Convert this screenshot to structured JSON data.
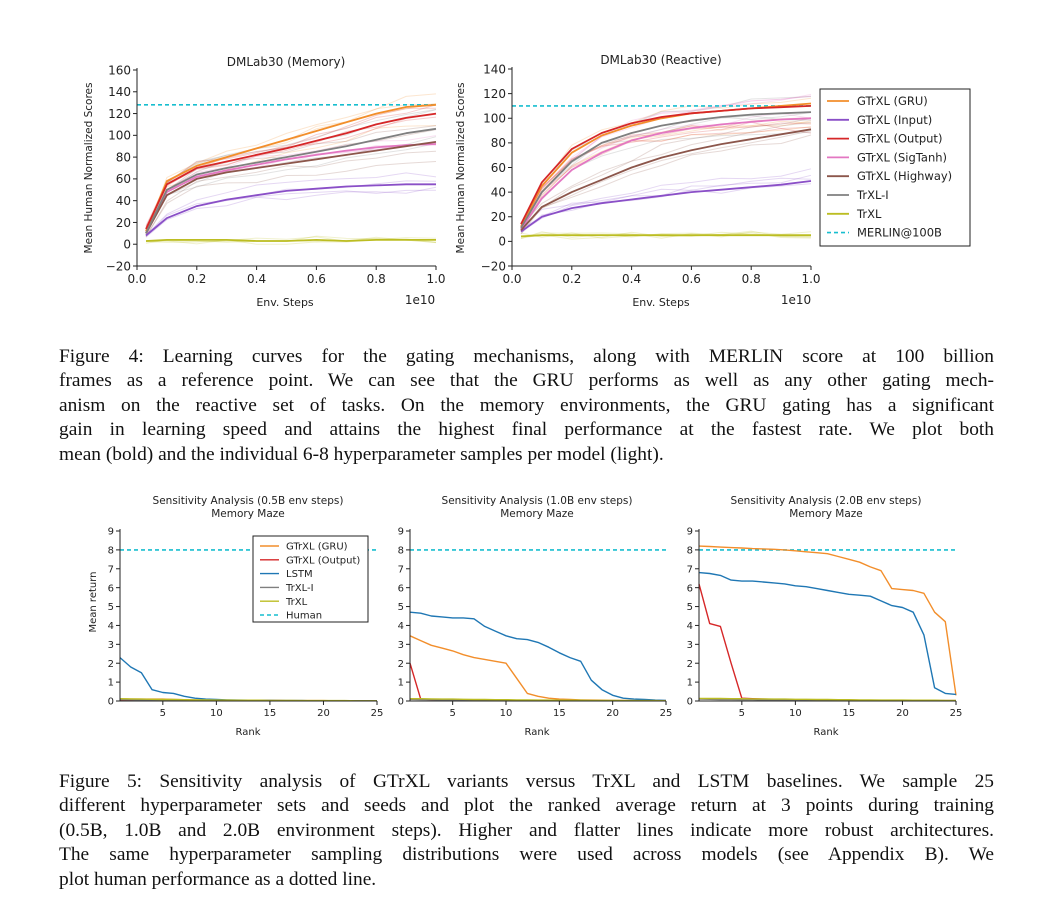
{
  "figure4": {
    "panels": [
      {
        "title": "DMLab30 (Memory)",
        "xlabel": "Env. Steps",
        "ylabel": "Mean Human Normalized Scores",
        "x_offset_label": "1e10",
        "xticks": [
          "0.0",
          "0.2",
          "0.4",
          "0.6",
          "0.8",
          "1.0"
        ],
        "yticks": [
          "−20",
          "0",
          "20",
          "40",
          "60",
          "80",
          "100",
          "120",
          "140",
          "160"
        ]
      },
      {
        "title": "DMLab30 (Reactive)",
        "xlabel": "Env. Steps",
        "ylabel": "Mean Human Normalized Scores",
        "x_offset_label": "1e10",
        "xticks": [
          "0.0",
          "0.2",
          "0.4",
          "0.6",
          "0.8",
          "1.0"
        ],
        "yticks": [
          "−20",
          "0",
          "20",
          "40",
          "60",
          "80",
          "100",
          "120",
          "140"
        ]
      }
    ],
    "legend": [
      "GTrXL (GRU)",
      "GTrXL (Input)",
      "GTrXL (Output)",
      "GTrXL (SigTanh)",
      "GTrXL (Highway)",
      "TrXL-I",
      "TrXL",
      "MERLIN@100B"
    ],
    "caption_lines": [
      "Figure 4: Learning curves for the gating mechanisms, along with MERLIN score at 100 billion",
      "frames as a reference point. We can see that the GRU performs as well as any other gating mech-",
      "anism on the reactive set of tasks. On the memory environments, the GRU gating has a significant",
      "gain in learning speed and attains the highest final performance at the fastest rate. We plot both",
      "mean (bold) and the individual 6-8 hyperparameter samples per model (light)."
    ]
  },
  "figure5": {
    "panels": [
      {
        "title_line1": "Sensitivity Analysis (0.5B env steps)",
        "title_line2": "Memory Maze",
        "xlabel": "Rank",
        "ylabel": "Mean return"
      },
      {
        "title_line1": "Sensitivity Analysis (1.0B env steps)",
        "title_line2": "Memory Maze",
        "xlabel": "Rank",
        "ylabel": ""
      },
      {
        "title_line1": "Sensitivity Analysis (2.0B env steps)",
        "title_line2": "Memory Maze",
        "xlabel": "Rank",
        "ylabel": ""
      }
    ],
    "xticks": [
      "5",
      "10",
      "15",
      "20",
      "25"
    ],
    "yticks": [
      "0",
      "1",
      "2",
      "3",
      "4",
      "5",
      "6",
      "7",
      "8",
      "9"
    ],
    "legend": [
      "GTrXL (GRU)",
      "GTrXL (Output)",
      "LSTM",
      "TrXL-I",
      "TrXL",
      "Human"
    ],
    "caption_lines": [
      "Figure 5: Sensitivity analysis of GTrXL variants versus TrXL and LSTM baselines. We sample 25",
      "different hyperparameter sets and seeds and plot the ranked average return at 3 points during training",
      "(0.5B, 1.0B and 2.0B environment steps). Higher and flatter lines indicate more robust architectures.",
      "The same hyperparameter sampling distributions were used across models (see Appendix B). We",
      "plot human performance as a dotted line."
    ]
  },
  "colors": {
    "gru": "#f28e2b",
    "input": "#8a4fc7",
    "output": "#d62728",
    "sigtanh": "#e377c2",
    "highway": "#8c564b",
    "trxli": "#7f7f7f",
    "trxl": "#bcbd22",
    "merlin": "#17becf",
    "lstm": "#1f77b4"
  },
  "chart_data": [
    {
      "type": "line",
      "title": "DMLab30 (Memory)",
      "xlabel": "Env. Steps",
      "ylabel": "Mean Human Normalized Scores",
      "xlim": [
        0.0,
        1.0
      ],
      "ylim": [
        -20,
        160
      ],
      "x_scale": "1e10",
      "x": [
        0.03,
        0.1,
        0.2,
        0.3,
        0.4,
        0.5,
        0.6,
        0.7,
        0.8,
        0.9,
        1.0
      ],
      "series": [
        {
          "name": "GTrXL (GRU)",
          "values": [
            12,
            58,
            72,
            80,
            88,
            96,
            104,
            112,
            120,
            126,
            128
          ]
        },
        {
          "name": "GTrXL (Input)",
          "values": [
            8,
            24,
            35,
            41,
            45,
            49,
            51,
            53,
            54,
            55,
            55
          ]
        },
        {
          "name": "GTrXL (Output)",
          "values": [
            14,
            55,
            70,
            76,
            82,
            88,
            95,
            102,
            110,
            116,
            120
          ]
        },
        {
          "name": "GTrXL (SigTanh)",
          "values": [
            10,
            48,
            62,
            68,
            73,
            78,
            82,
            86,
            89,
            91,
            92
          ]
        },
        {
          "name": "GTrXL (Highway)",
          "values": [
            10,
            45,
            60,
            66,
            70,
            74,
            78,
            82,
            86,
            90,
            94
          ]
        },
        {
          "name": "TrXL-I",
          "values": [
            10,
            50,
            64,
            70,
            75,
            80,
            85,
            90,
            96,
            102,
            106
          ]
        },
        {
          "name": "TrXL",
          "values": [
            3,
            4,
            4,
            4,
            3,
            3,
            4,
            3,
            4,
            4,
            4
          ]
        }
      ],
      "reference_lines": [
        {
          "name": "MERLIN@100B",
          "y": 128
        }
      ],
      "legend_position": "right"
    },
    {
      "type": "line",
      "title": "DMLab30 (Reactive)",
      "xlabel": "Env. Steps",
      "ylabel": "Mean Human Normalized Scores",
      "xlim": [
        0.0,
        1.0
      ],
      "ylim": [
        -20,
        140
      ],
      "x_scale": "1e10",
      "x": [
        0.03,
        0.1,
        0.2,
        0.3,
        0.4,
        0.5,
        0.6,
        0.7,
        0.8,
        0.9,
        1.0
      ],
      "series": [
        {
          "name": "GTrXL (GRU)",
          "values": [
            12,
            45,
            72,
            86,
            94,
            100,
            104,
            106,
            108,
            110,
            112
          ]
        },
        {
          "name": "GTrXL (Input)",
          "values": [
            8,
            20,
            27,
            31,
            34,
            37,
            40,
            42,
            44,
            46,
            49
          ]
        },
        {
          "name": "GTrXL (Output)",
          "values": [
            14,
            48,
            75,
            88,
            96,
            101,
            104,
            106,
            108,
            109,
            110
          ]
        },
        {
          "name": "GTrXL (SigTanh)",
          "values": [
            10,
            35,
            58,
            72,
            82,
            88,
            92,
            95,
            97,
            99,
            100
          ]
        },
        {
          "name": "GTrXL (Highway)",
          "values": [
            9,
            28,
            40,
            50,
            60,
            68,
            74,
            79,
            83,
            87,
            91
          ]
        },
        {
          "name": "TrXL-I",
          "values": [
            11,
            40,
            65,
            80,
            88,
            94,
            98,
            101,
            103,
            104,
            105
          ]
        },
        {
          "name": "TrXL",
          "values": [
            4,
            5,
            5,
            5,
            5,
            5,
            5,
            5,
            5,
            5,
            5
          ]
        }
      ],
      "reference_lines": [
        {
          "name": "MERLIN@100B",
          "y": 110
        }
      ]
    },
    {
      "type": "line",
      "title": "Sensitivity Analysis (0.5B env steps)",
      "subtitle": "Memory Maze",
      "xlabel": "Rank",
      "ylabel": "Mean return",
      "xlim": [
        1,
        25
      ],
      "ylim": [
        0,
        9
      ],
      "x": [
        1,
        2,
        3,
        4,
        5,
        6,
        7,
        8,
        9,
        10,
        11,
        12,
        13,
        14,
        15,
        16,
        17,
        18,
        19,
        20,
        21,
        22,
        23,
        24,
        25
      ],
      "series": [
        {
          "name": "GTrXL (GRU)",
          "values": [
            0.1,
            0.1,
            0.1,
            0.1,
            0.1,
            0.08,
            0.07,
            0.06,
            0.05,
            0.05,
            0.04,
            0.04,
            0.03,
            0.03,
            0.03,
            0.02,
            0.02,
            0.02,
            0.02,
            0.02,
            0.01,
            0.01,
            0.01,
            0.01,
            0.01
          ]
        },
        {
          "name": "GTrXL (Output)",
          "values": [
            0.05,
            0.05,
            0.04,
            0.04,
            0.04,
            0.03,
            0.03,
            0.03,
            0.03,
            0.02,
            0.02,
            0.02,
            0.02,
            0.02,
            0.02,
            0.02,
            0.01,
            0.01,
            0.01,
            0.01,
            0.01,
            0.01,
            0.01,
            0.01,
            0.01
          ]
        },
        {
          "name": "LSTM",
          "values": [
            2.3,
            1.8,
            1.5,
            0.6,
            0.45,
            0.4,
            0.25,
            0.15,
            0.1,
            0.08,
            0.06,
            0.05,
            0.04,
            0.03,
            0.03,
            0.02,
            0.02,
            0.02,
            0.01,
            0.01,
            0.01,
            0.01,
            0.01,
            0.01,
            0.01
          ]
        },
        {
          "name": "TrXL-I",
          "values": [
            0.08,
            0.07,
            0.06,
            0.05,
            0.05,
            0.04,
            0.04,
            0.03,
            0.03,
            0.03,
            0.02,
            0.02,
            0.02,
            0.02,
            0.02,
            0.01,
            0.01,
            0.01,
            0.01,
            0.01,
            0.01,
            0.01,
            0.01,
            0.01,
            0.01
          ]
        },
        {
          "name": "TrXL",
          "values": [
            0.12,
            0.11,
            0.1,
            0.09,
            0.08,
            0.08,
            0.07,
            0.06,
            0.06,
            0.05,
            0.05,
            0.04,
            0.04,
            0.04,
            0.03,
            0.03,
            0.03,
            0.02,
            0.02,
            0.02,
            0.02,
            0.02,
            0.01,
            0.01,
            0.01
          ]
        }
      ],
      "reference_lines": [
        {
          "name": "Human",
          "y": 8.0
        }
      ],
      "legend_position": "top-right"
    },
    {
      "type": "line",
      "title": "Sensitivity Analysis (1.0B env steps)",
      "subtitle": "Memory Maze",
      "xlabel": "Rank",
      "xlim": [
        1,
        25
      ],
      "ylim": [
        0,
        9
      ],
      "x": [
        1,
        2,
        3,
        4,
        5,
        6,
        7,
        8,
        9,
        10,
        11,
        12,
        13,
        14,
        15,
        16,
        17,
        18,
        19,
        20,
        21,
        22,
        23,
        24,
        25
      ],
      "series": [
        {
          "name": "GTrXL (GRU)",
          "values": [
            3.45,
            3.2,
            2.95,
            2.8,
            2.65,
            2.45,
            2.3,
            2.2,
            2.1,
            2.0,
            1.2,
            0.4,
            0.25,
            0.15,
            0.1,
            0.08,
            0.06,
            0.05,
            0.04,
            0.03,
            0.03,
            0.02,
            0.02,
            0.02,
            0.02
          ]
        },
        {
          "name": "GTrXL (Output)",
          "values": [
            2.0,
            0.1,
            0.08,
            0.07,
            0.06,
            0.05,
            0.05,
            0.04,
            0.04,
            0.03,
            0.03,
            0.03,
            0.02,
            0.02,
            0.02,
            0.02,
            0.02,
            0.01,
            0.01,
            0.01,
            0.01,
            0.01,
            0.01,
            0.01,
            0.01
          ]
        },
        {
          "name": "LSTM",
          "values": [
            4.7,
            4.65,
            4.5,
            4.45,
            4.4,
            4.4,
            4.35,
            3.95,
            3.7,
            3.45,
            3.3,
            3.25,
            3.1,
            2.85,
            2.55,
            2.3,
            2.1,
            1.1,
            0.6,
            0.3,
            0.15,
            0.1,
            0.08,
            0.05,
            0.03
          ]
        },
        {
          "name": "TrXL-I",
          "values": [
            0.09,
            0.08,
            0.07,
            0.06,
            0.06,
            0.05,
            0.05,
            0.04,
            0.04,
            0.03,
            0.03,
            0.03,
            0.02,
            0.02,
            0.02,
            0.02,
            0.01,
            0.01,
            0.01,
            0.01,
            0.01,
            0.01,
            0.01,
            0.01,
            0.01
          ]
        },
        {
          "name": "TrXL",
          "values": [
            0.12,
            0.12,
            0.11,
            0.1,
            0.1,
            0.09,
            0.08,
            0.08,
            0.07,
            0.07,
            0.06,
            0.06,
            0.05,
            0.05,
            0.04,
            0.04,
            0.04,
            0.03,
            0.03,
            0.03,
            0.02,
            0.02,
            0.02,
            0.02,
            0.01
          ]
        }
      ],
      "reference_lines": [
        {
          "name": "Human",
          "y": 8.0
        }
      ]
    },
    {
      "type": "line",
      "title": "Sensitivity Analysis (2.0B env steps)",
      "subtitle": "Memory Maze",
      "xlabel": "Rank",
      "xlim": [
        1,
        25
      ],
      "ylim": [
        0,
        9
      ],
      "x": [
        1,
        2,
        3,
        4,
        5,
        6,
        7,
        8,
        9,
        10,
        11,
        12,
        13,
        14,
        15,
        16,
        17,
        18,
        19,
        20,
        21,
        22,
        23,
        24,
        25
      ],
      "series": [
        {
          "name": "GTrXL (GRU)",
          "values": [
            8.2,
            8.18,
            8.15,
            8.12,
            8.1,
            8.07,
            8.05,
            8.03,
            8.0,
            7.95,
            7.9,
            7.85,
            7.8,
            7.65,
            7.5,
            7.35,
            7.1,
            6.9,
            5.95,
            5.9,
            5.85,
            5.7,
            4.7,
            4.2,
            0.3
          ]
        },
        {
          "name": "GTrXL (Output)",
          "values": [
            6.2,
            4.1,
            3.95,
            2.0,
            0.15,
            0.12,
            0.1,
            0.09,
            0.08,
            0.07,
            0.07,
            0.06,
            0.06,
            0.05,
            0.05,
            0.04,
            0.04,
            0.04,
            0.03,
            0.03,
            0.03,
            0.02,
            0.02,
            0.02,
            0.02
          ]
        },
        {
          "name": "LSTM",
          "values": [
            6.8,
            6.75,
            6.65,
            6.4,
            6.35,
            6.35,
            6.3,
            6.25,
            6.2,
            6.1,
            6.05,
            5.95,
            5.85,
            5.75,
            5.65,
            5.6,
            5.55,
            5.3,
            5.05,
            4.95,
            4.7,
            3.5,
            0.7,
            0.4,
            0.35
          ]
        },
        {
          "name": "TrXL-I",
          "values": [
            0.1,
            0.09,
            0.08,
            0.08,
            0.07,
            0.07,
            0.06,
            0.06,
            0.05,
            0.05,
            0.05,
            0.04,
            0.04,
            0.04,
            0.03,
            0.03,
            0.03,
            0.03,
            0.02,
            0.02,
            0.02,
            0.02,
            0.02,
            0.01,
            0.01
          ]
        },
        {
          "name": "TrXL",
          "values": [
            0.14,
            0.13,
            0.13,
            0.12,
            0.12,
            0.11,
            0.11,
            0.1,
            0.1,
            0.09,
            0.09,
            0.08,
            0.08,
            0.07,
            0.07,
            0.06,
            0.06,
            0.05,
            0.05,
            0.05,
            0.04,
            0.04,
            0.04,
            0.03,
            0.03
          ]
        }
      ],
      "reference_lines": [
        {
          "name": "Human",
          "y": 8.0
        }
      ]
    }
  ]
}
